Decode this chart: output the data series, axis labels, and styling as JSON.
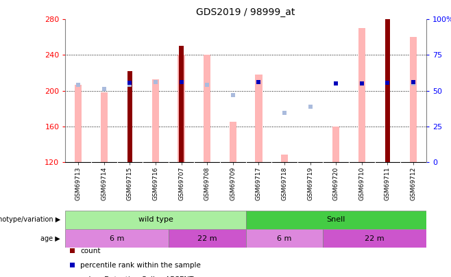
{
  "title": "GDS2019 / 98999_at",
  "samples": [
    "GSM69713",
    "GSM69714",
    "GSM69715",
    "GSM69716",
    "GSM69707",
    "GSM69708",
    "GSM69709",
    "GSM69717",
    "GSM69718",
    "GSM69719",
    "GSM69720",
    "GSM69710",
    "GSM69711",
    "GSM69712"
  ],
  "value_absent": [
    207,
    198,
    null,
    213,
    240,
    240,
    165,
    218,
    128,
    null,
    160,
    270,
    null,
    260
  ],
  "count": [
    null,
    null,
    222,
    null,
    250,
    null,
    null,
    null,
    null,
    null,
    null,
    null,
    280,
    null
  ],
  "percentile_rank": [
    null,
    null,
    209,
    null,
    210,
    null,
    null,
    210,
    null,
    null,
    208,
    208,
    209,
    210
  ],
  "rank_absent": [
    207,
    202,
    207,
    210,
    210,
    207,
    195,
    null,
    175,
    182,
    null,
    null,
    null,
    208
  ],
  "ylim": [
    120,
    280
  ],
  "y2lim": [
    0,
    100
  ],
  "yticks": [
    120,
    160,
    200,
    240,
    280
  ],
  "y2ticks": [
    0,
    25,
    50,
    75,
    100
  ],
  "y2labels": [
    "0",
    "25",
    "50",
    "75",
    "100%"
  ],
  "color_count": "#8B0000",
  "color_percentile": "#0000BB",
  "color_value_absent": "#FFB6B6",
  "color_rank_absent": "#AABBDD",
  "genotype_wt_color": "#AAEEA0",
  "genotype_snell_color": "#44CC44",
  "age_6m_color": "#DD88DD",
  "age_22m_color": "#CC55CC",
  "bar_width": 0.28,
  "count_bar_width": 0.18,
  "genotype_labels": [
    "wild type",
    "Snell"
  ],
  "age_labels": [
    "6 m",
    "22 m",
    "6 m",
    "22 m"
  ],
  "wt_count": 7,
  "snell_count": 7,
  "age_counts": [
    4,
    3,
    3,
    4
  ]
}
